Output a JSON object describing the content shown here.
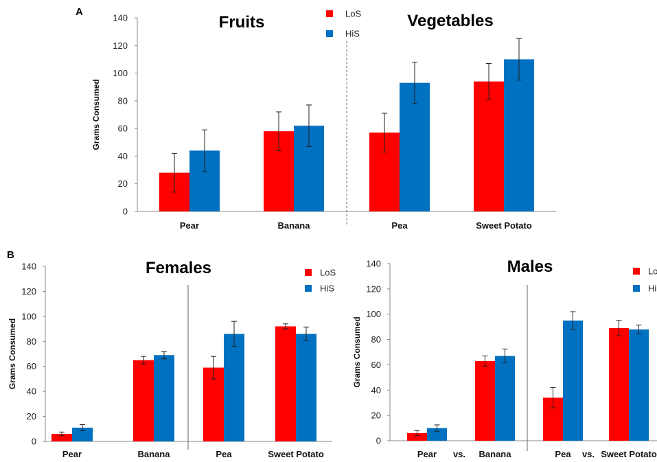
{
  "panels": {
    "a": "A",
    "b": "B"
  },
  "colors": {
    "LoS": "#ff0000",
    "HiS": "#0070c0"
  },
  "chart_data": [
    {
      "type": "bar",
      "ylabel": "Grams Consumed",
      "ylim": [
        0,
        140
      ],
      "yticks": [
        0,
        20,
        40,
        60,
        80,
        100,
        120,
        140
      ],
      "categories": [
        "Pear",
        "Banana",
        "Pea",
        "Sweet Potato"
      ],
      "group_titles": [
        "Fruits",
        "Vegetables"
      ],
      "legend": [
        "LoS",
        "HiS"
      ],
      "divider": "dashed",
      "extra_labels": [],
      "series": [
        {
          "name": "LoS",
          "values": [
            28,
            58,
            57,
            94
          ],
          "errors": [
            14,
            14,
            14,
            13
          ]
        },
        {
          "name": "HiS",
          "values": [
            44,
            62,
            93,
            110
          ],
          "errors": [
            15,
            15,
            15,
            15
          ]
        }
      ]
    },
    {
      "type": "bar",
      "ylabel": "Grams Consumed",
      "ylim": [
        0,
        140
      ],
      "yticks": [
        0,
        20,
        40,
        60,
        80,
        100,
        120,
        140
      ],
      "categories": [
        "Pear",
        "Banana",
        "Pea",
        "Sweet Potato"
      ],
      "group_titles": [
        "Females"
      ],
      "legend": [
        "LoS",
        "HiS"
      ],
      "divider": "solid",
      "extra_labels": [],
      "series": [
        {
          "name": "LoS",
          "values": [
            6,
            65,
            59,
            92
          ],
          "errors": [
            1.5,
            3,
            9,
            2
          ]
        },
        {
          "name": "HiS",
          "values": [
            11,
            69,
            86,
            86
          ],
          "errors": [
            2.5,
            3,
            10,
            5.5
          ]
        }
      ]
    },
    {
      "type": "bar",
      "ylabel": "Grams Consumed",
      "ylim": [
        0,
        140
      ],
      "yticks": [
        0,
        20,
        40,
        60,
        80,
        100,
        120,
        140
      ],
      "categories": [
        "Pear",
        "Banana",
        "Pea",
        "Sweet Potato"
      ],
      "group_titles": [
        "Males"
      ],
      "legend": [
        "Lo",
        "Hi"
      ],
      "divider": "solid",
      "extra_labels": [
        "vs.",
        "vs."
      ],
      "series": [
        {
          "name": "LoS",
          "values": [
            6,
            63,
            34,
            89
          ],
          "errors": [
            2,
            4,
            8,
            6
          ]
        },
        {
          "name": "HiS",
          "values": [
            10,
            67,
            95,
            88
          ],
          "errors": [
            2.5,
            5.5,
            7,
            3.5
          ]
        }
      ]
    }
  ]
}
